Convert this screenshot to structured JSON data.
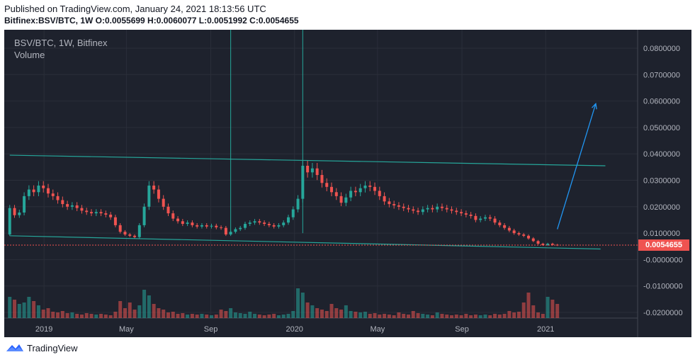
{
  "header": {
    "published": "Published on TradingView.com, January 24, 2021 18:13:56 UTC",
    "ohlc": "Bitfinex:BSV/BTC, 1W  O:0.0055699 H:0.0060077 L:0.0051992 C:0.0054655"
  },
  "legend": {
    "symbol": "BSV/BTC, 1W, Bitfinex",
    "volume": "Volume"
  },
  "footer": {
    "brand": "TradingView",
    "logo_icon": "tradingview-logo-icon"
  },
  "colors": {
    "background": "#1e222d",
    "up": "#26a69a",
    "down": "#ef5350",
    "channel": "#26a69a",
    "arrow": "#2196f3",
    "grid": "#2a2e39",
    "axis_text": "#b2b5be"
  },
  "chart_data": {
    "type": "candlestick",
    "symbol": "BSV/BTC",
    "interval": "1W",
    "exchange": "Bitfinex",
    "current_price": "0.0054655",
    "y_ticks": [
      "0.0800000",
      "0.0700000",
      "0.0600000",
      "0.0500000",
      "0.0400000",
      "0.0300000",
      "0.0200000",
      "0.0100000",
      "-0.0000000",
      "-0.0100000",
      "-0.0200000"
    ],
    "y_tick_values": [
      0.08,
      0.07,
      0.06,
      0.05,
      0.04,
      0.03,
      0.02,
      0.01,
      0,
      -0.01,
      -0.02
    ],
    "ylim": [
      -0.0215,
      0.0855
    ],
    "x_ticks": [
      "2019",
      "May",
      "Sep",
      "2020",
      "May",
      "Sep",
      "2021"
    ],
    "x_tick_dates": [
      "2019-01-01",
      "2019-05-01",
      "2019-09-01",
      "2020-01-01",
      "2020-05-01",
      "2020-09-01",
      "2021-01-01"
    ],
    "xlim": [
      "2018-11-04",
      "2021-05-15"
    ],
    "closes": [
      {
        "date": "2018-11-12",
        "value": 0.0195
      },
      {
        "date": "2018-11-19",
        "value": 0.0168
      },
      {
        "date": "2018-11-26",
        "value": 0.0178
      },
      {
        "date": "2018-12-03",
        "value": 0.024
      },
      {
        "date": "2018-12-10",
        "value": 0.0265
      },
      {
        "date": "2018-12-17",
        "value": 0.0255
      },
      {
        "date": "2018-12-24",
        "value": 0.028
      },
      {
        "date": "2018-12-31",
        "value": 0.027
      },
      {
        "date": "2019-01-07",
        "value": 0.025
      },
      {
        "date": "2019-01-14",
        "value": 0.024
      },
      {
        "date": "2019-01-21",
        "value": 0.0225
      },
      {
        "date": "2019-01-28",
        "value": 0.021
      },
      {
        "date": "2019-02-04",
        "value": 0.02
      },
      {
        "date": "2019-02-11",
        "value": 0.0205
      },
      {
        "date": "2019-02-18",
        "value": 0.0195
      },
      {
        "date": "2019-02-25",
        "value": 0.0185
      },
      {
        "date": "2019-03-04",
        "value": 0.018
      },
      {
        "date": "2019-03-11",
        "value": 0.0175
      },
      {
        "date": "2019-03-18",
        "value": 0.018
      },
      {
        "date": "2019-03-25",
        "value": 0.0175
      },
      {
        "date": "2019-04-01",
        "value": 0.017
      },
      {
        "date": "2019-04-08",
        "value": 0.016
      },
      {
        "date": "2019-04-15",
        "value": 0.013
      },
      {
        "date": "2019-04-22",
        "value": 0.0105
      },
      {
        "date": "2019-04-29",
        "value": 0.0095
      },
      {
        "date": "2019-05-06",
        "value": 0.009
      },
      {
        "date": "2019-05-13",
        "value": 0.0085
      },
      {
        "date": "2019-05-20",
        "value": 0.013
      },
      {
        "date": "2019-05-27",
        "value": 0.02
      },
      {
        "date": "2019-06-03",
        "value": 0.028
      },
      {
        "date": "2019-06-10",
        "value": 0.0265
      },
      {
        "date": "2019-06-17",
        "value": 0.023
      },
      {
        "date": "2019-06-24",
        "value": 0.02
      },
      {
        "date": "2019-07-01",
        "value": 0.0175
      },
      {
        "date": "2019-07-08",
        "value": 0.0155
      },
      {
        "date": "2019-07-15",
        "value": 0.0145
      },
      {
        "date": "2019-07-22",
        "value": 0.0135
      },
      {
        "date": "2019-07-29",
        "value": 0.014
      },
      {
        "date": "2019-08-05",
        "value": 0.013
      },
      {
        "date": "2019-08-12",
        "value": 0.0125
      },
      {
        "date": "2019-08-19",
        "value": 0.013
      },
      {
        "date": "2019-08-26",
        "value": 0.0125
      },
      {
        "date": "2019-09-02",
        "value": 0.0128
      },
      {
        "date": "2019-09-09",
        "value": 0.0122
      },
      {
        "date": "2019-09-16",
        "value": 0.012
      },
      {
        "date": "2019-09-23",
        "value": 0.0095
      },
      {
        "date": "2019-09-30",
        "value": 0.0105
      },
      {
        "date": "2019-10-07",
        "value": 0.0115
      },
      {
        "date": "2019-10-14",
        "value": 0.012
      },
      {
        "date": "2019-10-21",
        "value": 0.0135
      },
      {
        "date": "2019-10-28",
        "value": 0.014
      },
      {
        "date": "2019-11-04",
        "value": 0.0145
      },
      {
        "date": "2019-11-11",
        "value": 0.014
      },
      {
        "date": "2019-11-18",
        "value": 0.0135
      },
      {
        "date": "2019-11-25",
        "value": 0.013
      },
      {
        "date": "2019-12-02",
        "value": 0.0125
      },
      {
        "date": "2019-12-09",
        "value": 0.013
      },
      {
        "date": "2019-12-16",
        "value": 0.014
      },
      {
        "date": "2019-12-23",
        "value": 0.016
      },
      {
        "date": "2019-12-30",
        "value": 0.019
      },
      {
        "date": "2020-01-06",
        "value": 0.023
      },
      {
        "date": "2020-01-13",
        "value": 0.0355
      },
      {
        "date": "2020-01-20",
        "value": 0.033
      },
      {
        "date": "2020-01-27",
        "value": 0.0345
      },
      {
        "date": "2020-02-03",
        "value": 0.032
      },
      {
        "date": "2020-02-10",
        "value": 0.029
      },
      {
        "date": "2020-02-17",
        "value": 0.0275
      },
      {
        "date": "2020-02-24",
        "value": 0.0255
      },
      {
        "date": "2020-03-02",
        "value": 0.024
      },
      {
        "date": "2020-03-09",
        "value": 0.0215
      },
      {
        "date": "2020-03-16",
        "value": 0.0235
      },
      {
        "date": "2020-03-23",
        "value": 0.026
      },
      {
        "date": "2020-03-30",
        "value": 0.0255
      },
      {
        "date": "2020-04-06",
        "value": 0.027
      },
      {
        "date": "2020-04-13",
        "value": 0.028
      },
      {
        "date": "2020-04-20",
        "value": 0.0275
      },
      {
        "date": "2020-04-27",
        "value": 0.026
      },
      {
        "date": "2020-05-04",
        "value": 0.024
      },
      {
        "date": "2020-05-11",
        "value": 0.022
      },
      {
        "date": "2020-05-18",
        "value": 0.021
      },
      {
        "date": "2020-05-25",
        "value": 0.0205
      },
      {
        "date": "2020-06-01",
        "value": 0.02
      },
      {
        "date": "2020-06-08",
        "value": 0.0195
      },
      {
        "date": "2020-06-15",
        "value": 0.019
      },
      {
        "date": "2020-06-22",
        "value": 0.0185
      },
      {
        "date": "2020-06-29",
        "value": 0.018
      },
      {
        "date": "2020-07-06",
        "value": 0.019
      },
      {
        "date": "2020-07-13",
        "value": 0.0195
      },
      {
        "date": "2020-07-20",
        "value": 0.019
      },
      {
        "date": "2020-07-27",
        "value": 0.02
      },
      {
        "date": "2020-08-03",
        "value": 0.0195
      },
      {
        "date": "2020-08-10",
        "value": 0.019
      },
      {
        "date": "2020-08-17",
        "value": 0.0185
      },
      {
        "date": "2020-08-24",
        "value": 0.018
      },
      {
        "date": "2020-08-31",
        "value": 0.0175
      },
      {
        "date": "2020-09-07",
        "value": 0.017
      },
      {
        "date": "2020-09-14",
        "value": 0.0165
      },
      {
        "date": "2020-09-21",
        "value": 0.015
      },
      {
        "date": "2020-09-28",
        "value": 0.0155
      },
      {
        "date": "2020-10-05",
        "value": 0.016
      },
      {
        "date": "2020-10-12",
        "value": 0.0155
      },
      {
        "date": "2020-10-19",
        "value": 0.014
      },
      {
        "date": "2020-10-26",
        "value": 0.013
      },
      {
        "date": "2020-11-02",
        "value": 0.012
      },
      {
        "date": "2020-11-09",
        "value": 0.011
      },
      {
        "date": "2020-11-16",
        "value": 0.01
      },
      {
        "date": "2020-11-23",
        "value": 0.0095
      },
      {
        "date": "2020-11-30",
        "value": 0.009
      },
      {
        "date": "2020-12-07",
        "value": 0.008
      },
      {
        "date": "2020-12-14",
        "value": 0.007
      },
      {
        "date": "2020-12-21",
        "value": 0.006
      },
      {
        "date": "2020-12-28",
        "value": 0.0055
      },
      {
        "date": "2021-01-04",
        "value": 0.006
      },
      {
        "date": "2021-01-11",
        "value": 0.0056
      },
      {
        "date": "2021-01-18",
        "value": 0.0054655
      }
    ],
    "spikes": [
      {
        "date": "2019-09-30",
        "high": 0.0855
      },
      {
        "date": "2020-01-13",
        "high": 0.0855
      }
    ],
    "channel": {
      "upper": [
        {
          "date": "2018-11-12",
          "value": 0.0395
        },
        {
          "date": "2021-03-29",
          "value": 0.0355
        }
      ],
      "lower": [
        {
          "date": "2018-11-12",
          "value": 0.009
        },
        {
          "date": "2021-03-22",
          "value": 0.004
        }
      ]
    },
    "projection_arrow": {
      "from": {
        "date": "2021-01-18",
        "value": 0.0115
      },
      "to": {
        "date": "2021-03-15",
        "value": 0.059
      }
    },
    "volume_note": "volume bars shown in lower pane"
  }
}
